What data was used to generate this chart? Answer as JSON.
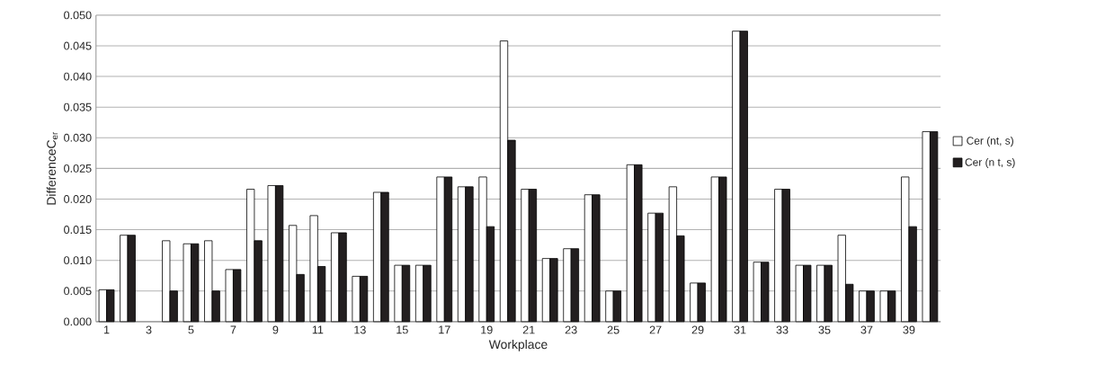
{
  "chart_data": {
    "type": "bar",
    "xlabel": "Workplace",
    "ylabel": "DifferenceC$_{er}$",
    "categories": [
      "1",
      null,
      "3",
      null,
      "5",
      null,
      "7",
      null,
      "9",
      null,
      "11",
      null,
      "13",
      null,
      "15",
      null,
      "17",
      null,
      "19",
      null,
      "21",
      null,
      "23",
      null,
      "25",
      null,
      "27",
      null,
      "29",
      null,
      "31",
      null,
      "33",
      null,
      "35",
      null,
      "37",
      null,
      "39",
      null
    ],
    "series": [
      {
        "name": "Cer (nt, s)",
        "color": "#ffffff",
        "values": [
          0.0052,
          0.0141,
          null,
          0.0132,
          0.0127,
          0.0132,
          0.0085,
          0.0216,
          0.0222,
          0.0157,
          0.0173,
          0.0145,
          0.0074,
          0.0211,
          0.0092,
          0.0092,
          0.0236,
          0.022,
          0.0236,
          0.0458,
          0.0216,
          0.0103,
          0.0119,
          0.0207,
          0.005,
          0.0256,
          0.0177,
          0.022,
          0.0063,
          0.0236,
          0.0474,
          0.0097,
          0.0216,
          0.0092,
          0.0092,
          0.0141,
          0.005,
          0.005,
          0.0236,
          0.031
        ]
      },
      {
        "name": "Cer (n  t, s)",
        "color": "#231f20",
        "values": [
          0.0052,
          0.0141,
          null,
          0.005,
          0.0127,
          0.005,
          0.0085,
          0.0132,
          0.0222,
          0.0077,
          0.009,
          0.0145,
          0.0074,
          0.0211,
          0.0092,
          0.0092,
          0.0236,
          0.022,
          0.0155,
          0.0296,
          0.0216,
          0.0103,
          0.0119,
          0.0207,
          0.005,
          0.0256,
          0.0177,
          0.014,
          0.0063,
          0.0236,
          0.0474,
          0.0097,
          0.0216,
          0.0092,
          0.0092,
          0.0061,
          0.005,
          0.005,
          0.0155,
          0.031
        ]
      }
    ],
    "ylim": [
      0,
      0.05
    ],
    "yticks": [
      {
        "value": 0,
        "label": "0.000"
      },
      {
        "value": 0.005,
        "label": "0.005"
      },
      {
        "value": 0.01,
        "label": "0.010"
      },
      {
        "value": 0.015,
        "label": "0.015"
      },
      {
        "value": 0.02,
        "label": "0.020"
      },
      {
        "value": 0.025,
        "label": "0.025"
      },
      {
        "value": 0.03,
        "label": "0.030"
      },
      {
        "value": 0.035,
        "label": "0.035"
      },
      {
        "value": 0.04,
        "label": "0.040"
      },
      {
        "value": 0.045,
        "label": "0.045"
      },
      {
        "value": 0.05,
        "label": "0.050"
      }
    ],
    "grid": "y",
    "legend": "right"
  }
}
